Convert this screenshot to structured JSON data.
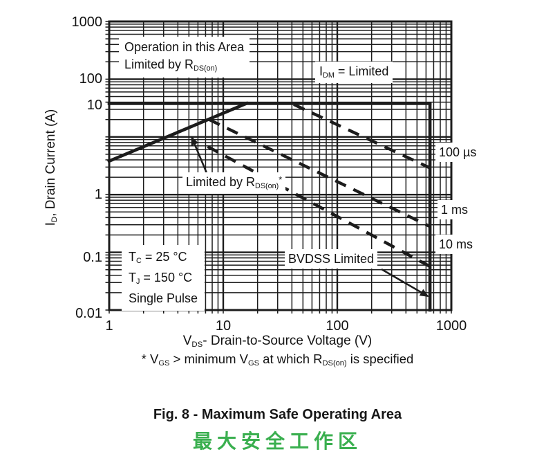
{
  "figure": {
    "caption_en": "Fig. 8 - Maximum Safe Operating Area",
    "caption_zh": "最大安全工作区",
    "caption_zh_color": "#3aaf4f",
    "ink_color": "#1c1c1c"
  },
  "chart_data": {
    "type": "line",
    "title": "Maximum Safe Operating Area",
    "x_axis": {
      "scale": "log",
      "min": 1,
      "max": 1000,
      "ticks": [
        {
          "label": "1",
          "v": 1
        },
        {
          "label": "10",
          "v": 10
        },
        {
          "label": "100",
          "v": 100
        },
        {
          "label": "1000",
          "v": 1000
        }
      ]
    },
    "y_axis": {
      "scale": "log",
      "min": 0.01,
      "max": 1000,
      "ticks": [
        {
          "label": "1000",
          "v": 1000,
          "dy": 1
        },
        {
          "label": "100",
          "v": 100,
          "dy": 0
        },
        {
          "label": "10",
          "v": 10,
          "dy": -46
        },
        {
          "label": "1",
          "v": 1,
          "dy": 0
        },
        {
          "label": "0.1",
          "v": 0.1,
          "dy": 7
        },
        {
          "label": "0.01",
          "v": 0.01,
          "dy": 5
        }
      ]
    },
    "grid": {
      "minor": true,
      "major": true
    },
    "legend_position": "none",
    "series": [
      {
        "name": "rdson_limit_line",
        "style": "solid_thick",
        "points": [
          [
            1,
            3.8
          ],
          [
            16,
            38
          ]
        ]
      },
      {
        "name": "idm_limit_line",
        "style": "solid_thick",
        "points": [
          [
            1,
            38
          ],
          [
            650,
            38
          ]
        ]
      },
      {
        "name": "bvdss_limit_line",
        "style": "solid_thick",
        "points": [
          [
            650,
            38
          ],
          [
            650,
            0.01
          ]
        ]
      },
      {
        "name": "pulse_100us",
        "label": "100 µs",
        "style": "dashed_thick",
        "points": [
          [
            41.5,
            36.5
          ],
          [
            650,
            2.9
          ]
        ]
      },
      {
        "name": "pulse_1ms",
        "label": "1 ms",
        "style": "dashed_thick",
        "points": [
          [
            7.5,
            20
          ],
          [
            650,
            0.28
          ]
        ]
      },
      {
        "name": "pulse_10ms",
        "label": "10 ms",
        "style": "dashed_thick",
        "points": [
          [
            7.3,
            6.8
          ],
          [
            650,
            0.057
          ]
        ]
      }
    ],
    "arrows": [
      {
        "name": "rdson-pointer",
        "from": [
          7.2,
          2.3
        ],
        "to": [
          5.3,
          9.8
        ]
      },
      {
        "name": "bvdss-pointer",
        "from": [
          244,
          0.051
        ],
        "to": [
          622,
          0.0174
        ]
      }
    ],
    "xlabel_segments": [
      {
        "t": "V"
      },
      {
        "sub": "DS"
      },
      {
        "t": "- Drain-to-Source Voltage (V)"
      }
    ],
    "ylabel_segments": [
      {
        "t": "I"
      },
      {
        "sub": "D"
      },
      {
        "t": ", Drain Current (A)"
      }
    ],
    "footnote_segments": [
      {
        "t": "* V"
      },
      {
        "sub": "GS"
      },
      {
        "t": " > minimum V"
      },
      {
        "sub": "GS"
      },
      {
        "t": " at which R"
      },
      {
        "sub": "DS(on)"
      },
      {
        "t": " is specified"
      }
    ],
    "annotations": {
      "operation_area": {
        "lines": [
          [
            {
              "t": "Operation in this Area"
            }
          ],
          [
            {
              "t": "Limited by R"
            },
            {
              "sub": "DS(on)"
            }
          ]
        ]
      },
      "idm_limited": {
        "segments": [
          {
            "t": "I"
          },
          {
            "sub": "DM"
          },
          {
            "t": " = Limited"
          }
        ]
      },
      "limited_by_rdson": {
        "segments": [
          {
            "t": "Limited by R"
          },
          {
            "sub": "DS(on)"
          },
          {
            "sup": "*"
          }
        ]
      },
      "conditions": {
        "lines": [
          [
            {
              "t": "T"
            },
            {
              "sub": "C"
            },
            {
              "t": " = 25 °C"
            }
          ],
          [
            {
              "t": "T"
            },
            {
              "sub": "J"
            },
            {
              "t": " = 150 °C"
            }
          ],
          [
            {
              "t": "Single Pulse"
            }
          ]
        ]
      },
      "bvdss_limited": {
        "segments": [
          {
            "t": "BVDSS Limited"
          }
        ]
      },
      "pulse_100us_label": "100 µs",
      "pulse_1ms_label": "1 ms",
      "pulse_10ms_label": "10 ms"
    }
  }
}
